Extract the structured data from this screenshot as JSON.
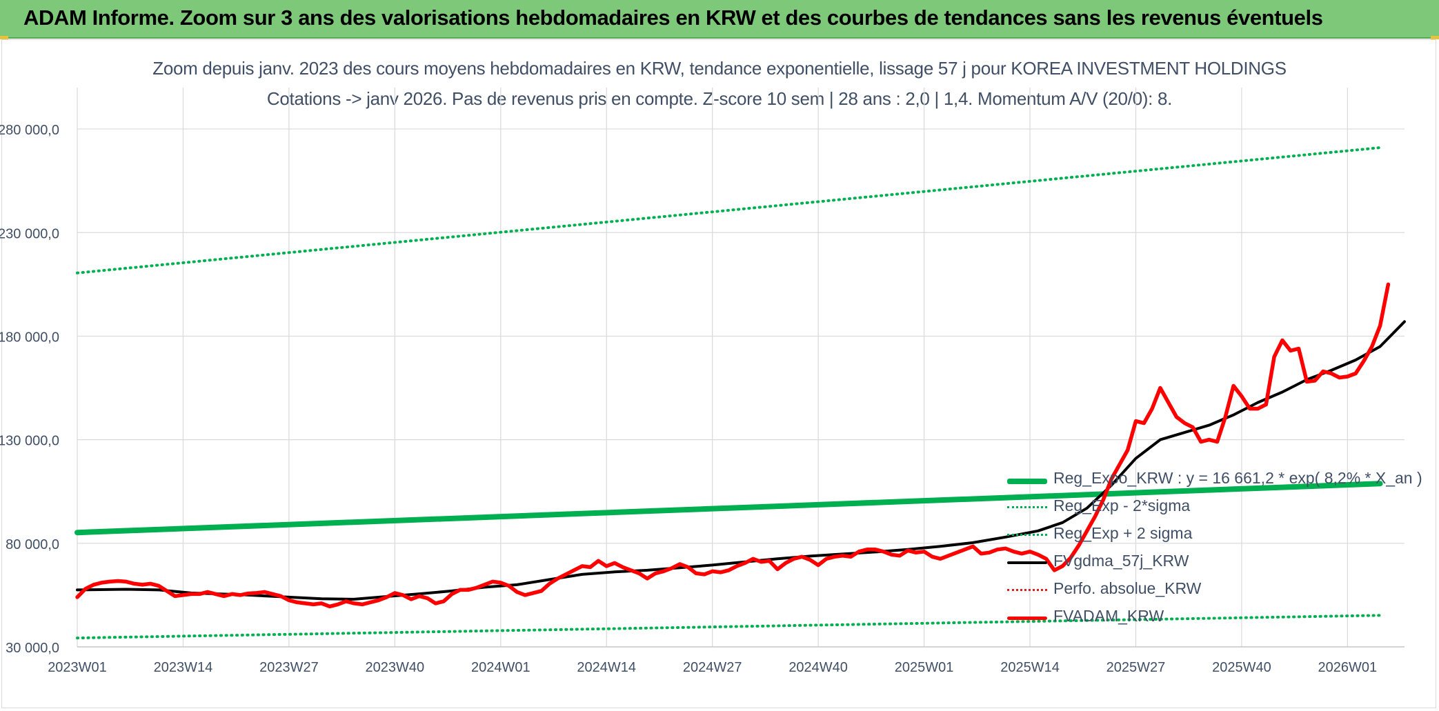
{
  "header": {
    "title": "ADAM Informe. Zoom sur 3 ans des valorisations hebdomadaires en KRW et des courbes de tendances sans les revenus éventuels"
  },
  "chart_data": {
    "type": "line",
    "title": "Zoom depuis janv. 2023 des cours moyens hebdomadaires en KRW, tendance exponentielle, lissage 57 j pour KOREA INVESTMENT HOLDINGS",
    "subtitle": "Cotations -> janv 2026. Pas de revenus pris en compte. Z-score 10 sem | 28 ans : 2,0 | 1,4. Momentum A/V (20/0): 8.",
    "xlabel": "",
    "ylabel": "",
    "ylim": [
      30000,
      300000
    ],
    "y_ticks": [
      30000,
      80000,
      130000,
      180000,
      230000,
      280000
    ],
    "y_tick_labels": [
      "30 000,0",
      "80 000,0",
      "130 000,0",
      "180 000,0",
      "230 000,0",
      "280 000,0"
    ],
    "x_range": [
      0,
      163
    ],
    "x_ticks": [
      0,
      13,
      26,
      39,
      52,
      65,
      78,
      91,
      104,
      117,
      130,
      143,
      156
    ],
    "x_tick_labels": [
      "2023W01",
      "2023W14",
      "2023W27",
      "2023W40",
      "2024W01",
      "2024W14",
      "2024W27",
      "2024W40",
      "2025W01",
      "2025W14",
      "2025W27",
      "2025W40",
      "2026W01"
    ],
    "grid": true,
    "legend_position": "bottom-right",
    "series": [
      {
        "name": "Reg_Expo_KRW : y = 16 661,2 * exp( 8,2% * X_an )",
        "style": "solid-thick",
        "color": "#00b050",
        "points": [
          [
            0,
            85200
          ],
          [
            160,
            108800
          ]
        ]
      },
      {
        "name": "Reg_Exp - 2*sigma",
        "style": "dotted",
        "color": "#00b050",
        "points": [
          [
            0,
            34300
          ],
          [
            160,
            45200
          ]
        ]
      },
      {
        "name": "Reg_Exp + 2 sigma",
        "style": "dotted",
        "color": "#00b050",
        "points": [
          [
            0,
            210500
          ],
          [
            160,
            271000
          ]
        ]
      },
      {
        "name": "FVgdma_57j_KRW",
        "style": "solid",
        "color": "#000000",
        "points": [
          [
            0,
            57500
          ],
          [
            6,
            57800
          ],
          [
            10,
            57500
          ],
          [
            14,
            56000
          ],
          [
            20,
            55200
          ],
          [
            26,
            54000
          ],
          [
            30,
            53200
          ],
          [
            34,
            53000
          ],
          [
            38,
            54300
          ],
          [
            42,
            55600
          ],
          [
            46,
            57000
          ],
          [
            50,
            58800
          ],
          [
            54,
            60000
          ],
          [
            58,
            62500
          ],
          [
            62,
            65000
          ],
          [
            66,
            66200
          ],
          [
            70,
            67000
          ],
          [
            74,
            68200
          ],
          [
            78,
            69500
          ],
          [
            82,
            71000
          ],
          [
            86,
            72500
          ],
          [
            90,
            73800
          ],
          [
            94,
            74800
          ],
          [
            98,
            75800
          ],
          [
            102,
            77000
          ],
          [
            106,
            78500
          ],
          [
            110,
            80300
          ],
          [
            114,
            83000
          ],
          [
            118,
            86000
          ],
          [
            121,
            90000
          ],
          [
            124,
            97000
          ],
          [
            127,
            108000
          ],
          [
            130,
            121000
          ],
          [
            133,
            130000
          ],
          [
            136,
            133500
          ],
          [
            139,
            137000
          ],
          [
            142,
            142000
          ],
          [
            145,
            148000
          ],
          [
            148,
            153000
          ],
          [
            151,
            159000
          ],
          [
            154,
            163500
          ],
          [
            157,
            168500
          ],
          [
            160,
            175000
          ],
          [
            163,
            187000
          ]
        ]
      },
      {
        "name": "Perfo. absolue_KRW",
        "style": "dotted",
        "color": "#e02020",
        "points": []
      },
      {
        "name": "FVADAM_KRW",
        "style": "solid-thick",
        "color": "#ff0000",
        "points": [
          [
            0,
            54000
          ],
          [
            1,
            58000
          ],
          [
            2,
            60000
          ],
          [
            3,
            61000
          ],
          [
            4,
            61500
          ],
          [
            5,
            61800
          ],
          [
            6,
            61500
          ],
          [
            7,
            60500
          ],
          [
            8,
            60000
          ],
          [
            9,
            60500
          ],
          [
            10,
            59500
          ],
          [
            11,
            57000
          ],
          [
            12,
            54500
          ],
          [
            13,
            55000
          ],
          [
            14,
            55500
          ],
          [
            15,
            55500
          ],
          [
            16,
            56500
          ],
          [
            17,
            55500
          ],
          [
            18,
            54500
          ],
          [
            19,
            55500
          ],
          [
            20,
            55000
          ],
          [
            21,
            55800
          ],
          [
            22,
            56000
          ],
          [
            23,
            56500
          ],
          [
            24,
            55500
          ],
          [
            25,
            54500
          ],
          [
            26,
            52500
          ],
          [
            27,
            51500
          ],
          [
            28,
            51000
          ],
          [
            29,
            50500
          ],
          [
            30,
            51000
          ],
          [
            31,
            49500
          ],
          [
            32,
            50500
          ],
          [
            33,
            52000
          ],
          [
            34,
            51000
          ],
          [
            35,
            50500
          ],
          [
            36,
            51500
          ],
          [
            37,
            52500
          ],
          [
            38,
            54000
          ],
          [
            39,
            56000
          ],
          [
            40,
            55000
          ],
          [
            41,
            53000
          ],
          [
            42,
            54500
          ],
          [
            43,
            53500
          ],
          [
            44,
            51000
          ],
          [
            45,
            52000
          ],
          [
            46,
            55500
          ],
          [
            47,
            57500
          ],
          [
            48,
            57500
          ],
          [
            49,
            58500
          ],
          [
            50,
            60000
          ],
          [
            51,
            61500
          ],
          [
            52,
            61000
          ],
          [
            53,
            59500
          ],
          [
            54,
            56500
          ],
          [
            55,
            55000
          ],
          [
            56,
            56000
          ],
          [
            57,
            57000
          ],
          [
            58,
            60500
          ],
          [
            59,
            63000
          ],
          [
            60,
            65000
          ],
          [
            61,
            67000
          ],
          [
            62,
            69000
          ],
          [
            63,
            68500
          ],
          [
            64,
            71500
          ],
          [
            65,
            69000
          ],
          [
            66,
            70500
          ],
          [
            67,
            68500
          ],
          [
            68,
            67000
          ],
          [
            69,
            65500
          ],
          [
            70,
            63000
          ],
          [
            71,
            65500
          ],
          [
            72,
            66500
          ],
          [
            73,
            68000
          ],
          [
            74,
            70000
          ],
          [
            75,
            68500
          ],
          [
            76,
            65500
          ],
          [
            77,
            65000
          ],
          [
            78,
            66500
          ],
          [
            79,
            66000
          ],
          [
            80,
            67000
          ],
          [
            81,
            69000
          ],
          [
            82,
            70500
          ],
          [
            83,
            72500
          ],
          [
            84,
            71000
          ],
          [
            85,
            71500
          ],
          [
            86,
            67500
          ],
          [
            87,
            70500
          ],
          [
            88,
            72500
          ],
          [
            89,
            73500
          ],
          [
            90,
            72000
          ],
          [
            91,
            69500
          ],
          [
            92,
            72500
          ],
          [
            93,
            73500
          ],
          [
            94,
            74000
          ],
          [
            95,
            73500
          ],
          [
            96,
            76000
          ],
          [
            97,
            77000
          ],
          [
            98,
            77000
          ],
          [
            99,
            76000
          ],
          [
            100,
            74500
          ],
          [
            101,
            74000
          ],
          [
            102,
            76500
          ],
          [
            103,
            75500
          ],
          [
            104,
            76000
          ],
          [
            105,
            73500
          ],
          [
            106,
            72500
          ],
          [
            107,
            74000
          ],
          [
            108,
            75500
          ],
          [
            109,
            77000
          ],
          [
            110,
            78500
          ],
          [
            111,
            75000
          ],
          [
            112,
            75500
          ],
          [
            113,
            77000
          ],
          [
            114,
            77500
          ],
          [
            115,
            76000
          ],
          [
            116,
            75000
          ],
          [
            117,
            76000
          ],
          [
            118,
            74500
          ],
          [
            119,
            72500
          ],
          [
            120,
            67000
          ],
          [
            121,
            69000
          ],
          [
            122,
            73000
          ],
          [
            123,
            79000
          ],
          [
            124,
            86000
          ],
          [
            125,
            93000
          ],
          [
            126,
            101000
          ],
          [
            127,
            111000
          ],
          [
            128,
            118000
          ],
          [
            129,
            125000
          ],
          [
            130,
            139000
          ],
          [
            131,
            138000
          ],
          [
            132,
            145000
          ],
          [
            133,
            155000
          ],
          [
            134,
            148000
          ],
          [
            135,
            141000
          ],
          [
            136,
            138000
          ],
          [
            137,
            136000
          ],
          [
            138,
            129000
          ],
          [
            139,
            130000
          ],
          [
            140,
            129000
          ],
          [
            141,
            141000
          ],
          [
            142,
            156000
          ],
          [
            143,
            151000
          ],
          [
            144,
            145000
          ],
          [
            145,
            145000
          ],
          [
            146,
            147000
          ],
          [
            147,
            170000
          ],
          [
            148,
            178000
          ],
          [
            149,
            173000
          ],
          [
            150,
            174000
          ],
          [
            151,
            158000
          ],
          [
            152,
            158500
          ],
          [
            153,
            163000
          ],
          [
            154,
            162000
          ],
          [
            155,
            160000
          ],
          [
            156,
            160500
          ],
          [
            157,
            162000
          ],
          [
            158,
            168000
          ],
          [
            159,
            175000
          ],
          [
            160,
            185000
          ],
          [
            161,
            205000
          ]
        ]
      }
    ]
  }
}
